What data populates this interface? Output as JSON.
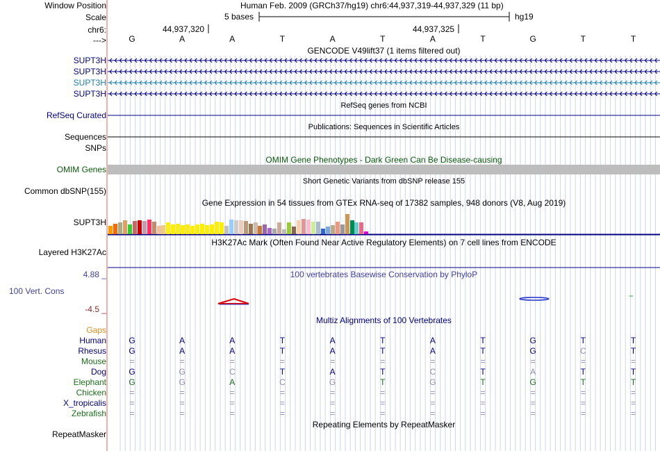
{
  "header": {
    "window_position_label": "Window Position",
    "window_position_value": "Human Feb. 2009 (GRCh37/hg19)   chr6:44,937,319-44,937,329 (11 bp)",
    "scale_label": "Scale",
    "scale_text": "5 bases",
    "scale_assembly": "hg19",
    "chrom_label": "chr6:",
    "coord_left": "44,937,320",
    "coord_right": "44,937,325",
    "strand_label": "--->"
  },
  "sequence": [
    "G",
    "A",
    "A",
    "T",
    "A",
    "T",
    "A",
    "T",
    "G",
    "T",
    "T"
  ],
  "tracks": {
    "gencode_title": "GENCODE V49lift37 (1 items filtered out)",
    "gencode_labels": [
      "SUPT3H",
      "SUPT3H",
      "SUPT3H",
      "SUPT3H"
    ],
    "refseq_title": "RefSeq genes from NCBI",
    "refseq_label": "RefSeq Curated",
    "pubs_title": "Publications: Sequences in Scientific Articles",
    "pubs_label": "Sequences",
    "snps_label": "SNPs",
    "omim_title": "OMIM Gene Phenotypes - Dark Green Can Be Disease-causing",
    "omim_label": "OMIM Genes",
    "dbsnp_title": "Short Genetic Variants from dbSNP release 155",
    "dbsnp_label": "Common dbSNP(155)",
    "gtex_title": "Gene Expression in 54 tissues from GTEx RNA-seq of 17382 samples, 948 donors (V8, Aug 2019)",
    "gtex_label": "SUPT3H",
    "h3k27_title": "H3K27Ac Mark (Often Found Near Active Regulatory Elements) on 7 cell lines from ENCODE",
    "h3k27_label": "Layered H3K27Ac",
    "phylop_title": "100 vertebrates Basewise Conservation by PhyloP",
    "phylop_label": "100 Vert. Cons",
    "phylop_max": "4.88 _",
    "phylop_min": "-4.5 _",
    "multiz_title": "Multiz Alignments of 100 Vertebrates",
    "gaps_label": "Gaps",
    "repeat_title": "Repeating Elements by RepeatMasker",
    "repeat_label": "RepeatMasker"
  },
  "colors": {
    "navy": "#000080",
    "gencode_teal": "#1a7fa8",
    "omim_green": "#0a5a0a",
    "phylop_blue": "#3f3f9f",
    "phylop_min_red": "#8b2b2b",
    "gaps_orange": "#d98c1a",
    "elephant_green": "#1a6e1a",
    "gray_base": "#8c8cb4"
  },
  "gtex_bars": {
    "colors": [
      "#ff9900",
      "#ff6600",
      "#aaaa88",
      "#e0a060",
      "#33cc33",
      "#cc6666",
      "#cc0000",
      "#cc99aa",
      "#ff3366",
      "#cc8866",
      "#f0c0a0",
      "#eecc88",
      "#ffee00",
      "#ffee00",
      "#ffee00",
      "#ffee00",
      "#ffee00",
      "#ffee00",
      "#ffee00",
      "#ffee00",
      "#ffee00",
      "#ffee00",
      "#ffee00",
      "#ffee00",
      "#c0c0c0",
      "#99ccff",
      "#cccccc",
      "#eeccbb",
      "#bb9977",
      "#997755",
      "#ccbbaa",
      "#cc7733",
      "#9966aa",
      "#aa66cc",
      "#aaaaaa",
      "#ccaa99",
      "#bbbbbb",
      "#99cc33",
      "#886655",
      "#ffccaa",
      "#dd9999",
      "#ffbbcc",
      "#ccee99",
      "#aabbcc",
      "#3366cc",
      "#77aadd",
      "#bbaa88",
      "#ee9977",
      "#999999",
      "#cc9955",
      "#008855",
      "#66cccc",
      "#ee6688",
      "#dd00dd"
    ],
    "values": [
      0.55,
      0.7,
      0.75,
      0.9,
      0.65,
      0.85,
      0.9,
      0.85,
      0.95,
      0.8,
      0.55,
      0.6,
      0.75,
      0.65,
      0.7,
      0.6,
      0.65,
      0.55,
      0.65,
      0.7,
      0.6,
      0.65,
      0.8,
      0.75,
      0.55,
      0.95,
      0.9,
      0.9,
      0.85,
      0.7,
      0.75,
      0.55,
      0.65,
      0.4,
      0.35,
      0.75,
      0.3,
      0.75,
      0.5,
      0.9,
      1.0,
      0.95,
      0.8,
      0.8,
      0.35,
      0.5,
      0.6,
      0.8,
      0.65,
      1.3,
      0.9,
      0.75,
      0.75,
      0.2
    ]
  },
  "multiz": {
    "species": [
      {
        "name": "Human",
        "color": "#000080",
        "bases": [
          "G",
          "A",
          "A",
          "T",
          "A",
          "T",
          "A",
          "T",
          "G",
          "T",
          "T"
        ],
        "gray": []
      },
      {
        "name": "Rhesus",
        "color": "#000080",
        "bases": [
          "G",
          "A",
          "A",
          "T",
          "A",
          "T",
          "A",
          "T",
          "G",
          "C",
          "T"
        ],
        "gray": [
          9
        ]
      },
      {
        "name": "Mouse",
        "color": "#1a6e1a",
        "bases": [
          "=",
          "=",
          "=",
          "=",
          "=",
          "=",
          "=",
          "=",
          "=",
          "=",
          "="
        ],
        "gray": [
          0,
          1,
          2,
          3,
          4,
          5,
          6,
          7,
          8,
          9,
          10
        ]
      },
      {
        "name": "Dog",
        "color": "#000080",
        "bases": [
          "G",
          "G",
          "C",
          "T",
          "A",
          "T",
          "C",
          "T",
          "A",
          "T",
          "T"
        ],
        "gray": [
          1,
          2,
          6,
          8
        ]
      },
      {
        "name": "Elephant",
        "color": "#1a6e1a",
        "bases": [
          "G",
          "G",
          "A",
          "C",
          "G",
          "T",
          "G",
          "T",
          "G",
          "T",
          "T"
        ],
        "gray": [
          1,
          3,
          4,
          6
        ]
      },
      {
        "name": "Chicken",
        "color": "#1a6e1a",
        "bases": [
          "=",
          "=",
          "=",
          "=",
          "=",
          "=",
          "=",
          "=",
          "=",
          "=",
          "="
        ],
        "gray": [
          0,
          1,
          2,
          3,
          4,
          5,
          6,
          7,
          8,
          9,
          10
        ]
      },
      {
        "name": "X_tropicalis",
        "color": "#000080",
        "bases": [
          "=",
          "=",
          "=",
          "=",
          "=",
          "=",
          "=",
          "=",
          "=",
          "=",
          "="
        ],
        "gray": [
          0,
          1,
          2,
          3,
          4,
          5,
          6,
          7,
          8,
          9,
          10
        ]
      },
      {
        "name": "Zebrafish",
        "color": "#1a6e1a",
        "bases": [
          "=",
          "=",
          "=",
          "=",
          "=",
          "=",
          "=",
          "=",
          "=",
          "=",
          "="
        ],
        "gray": [
          0,
          1,
          2,
          3,
          4,
          5,
          6,
          7,
          8,
          9,
          10
        ]
      }
    ]
  }
}
